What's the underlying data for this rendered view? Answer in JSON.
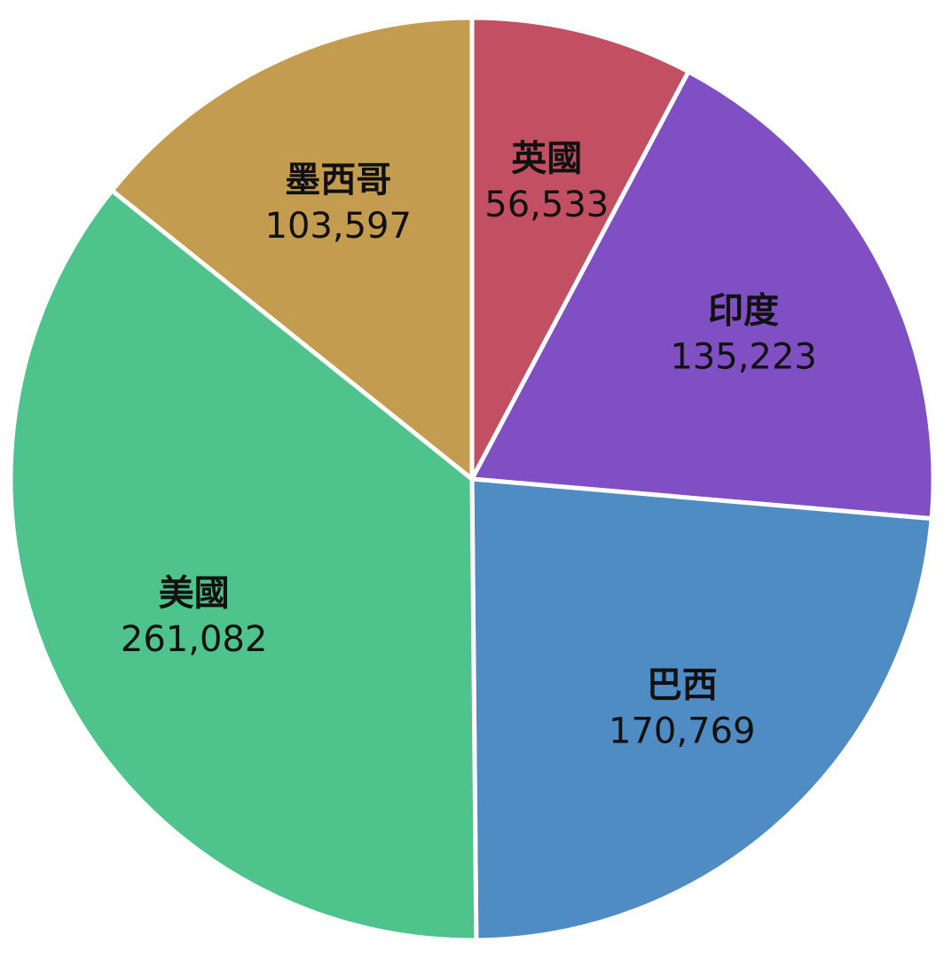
{
  "chart_data": {
    "type": "pie",
    "title": "",
    "start_angle_deg": 0,
    "direction": "clockwise",
    "categories": [
      "英國",
      "印度",
      "巴西",
      "美國",
      "墨西哥"
    ],
    "values": [
      56533,
      135223,
      170769,
      261082,
      103597
    ],
    "value_labels": [
      "56,533",
      "135,223",
      "170,769",
      "261,082",
      "103,597"
    ],
    "colors": [
      "#c34f63",
      "#7f4fc3",
      "#4f8cc3",
      "#4fc38c",
      "#c39c4f"
    ],
    "legend": "none",
    "labels_on_slices": true
  }
}
